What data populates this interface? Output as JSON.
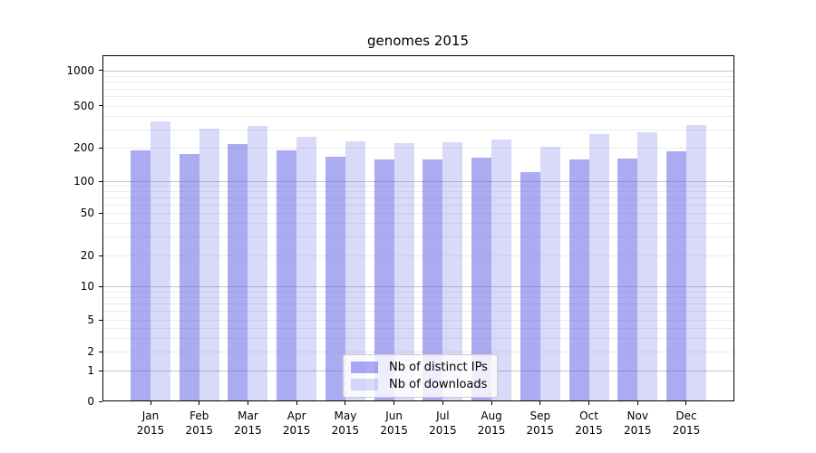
{
  "chart_data": {
    "type": "bar",
    "title": "genomes 2015",
    "x_year": "2015",
    "months": [
      "Jan",
      "Feb",
      "Mar",
      "Apr",
      "May",
      "Jun",
      "Jul",
      "Aug",
      "Sep",
      "Oct",
      "Nov",
      "Dec"
    ],
    "categories": [
      "Jan 2015",
      "Feb 2015",
      "Mar 2015",
      "Apr 2015",
      "May 2015",
      "Jun 2015",
      "Jul 2015",
      "Aug 2015",
      "Sep 2015",
      "Oct 2015",
      "Nov 2015",
      "Dec 2015"
    ],
    "series": [
      {
        "name": "Nb of distinct IPs",
        "color": "rgba(102,102,230,0.55)",
        "values": [
          191,
          177,
          216,
          189,
          166,
          158,
          156,
          163,
          120,
          158,
          159,
          187
        ]
      },
      {
        "name": "Nb of downloads",
        "color": "rgba(102,102,230,0.25)",
        "values": [
          355,
          305,
          321,
          255,
          232,
          223,
          228,
          240,
          204,
          270,
          280,
          330
        ]
      }
    ],
    "y_ticks": [
      0,
      1,
      2,
      5,
      10,
      20,
      50,
      100,
      200,
      500,
      1000
    ],
    "y_major_gridlines": [
      1,
      10,
      100,
      1000
    ],
    "y_scale": "symlog",
    "ylim": [
      0,
      1370
    ],
    "grid": true,
    "legend": {
      "position": "lower center",
      "entries": [
        "Nb of distinct IPs",
        "Nb of downloads"
      ]
    }
  }
}
